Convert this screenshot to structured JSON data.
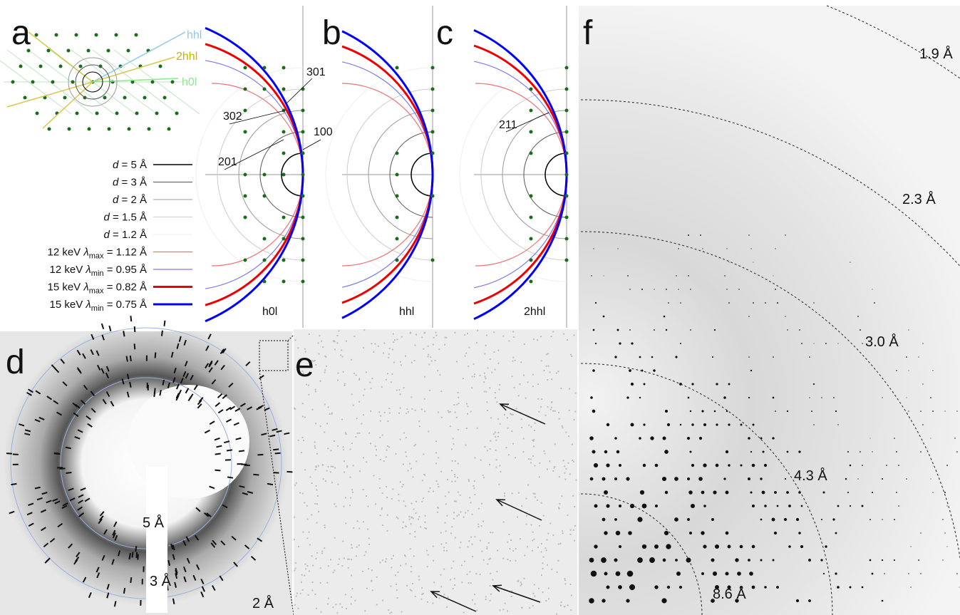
{
  "panel_labels": [
    "a",
    "b",
    "c",
    "d",
    "e",
    "f"
  ],
  "lattice_labels": [
    "hhl",
    "2hhl",
    "h0l"
  ],
  "reflections": [
    "301",
    "302",
    "201",
    "100",
    "211"
  ],
  "legend": [
    {
      "symbol": "d",
      "text": " = 5 Å"
    },
    {
      "symbol": "d",
      "text": " = 3 Å"
    },
    {
      "symbol": "d",
      "text": " = 2 Å"
    },
    {
      "symbol": "d",
      "text": " = 1.5 Å"
    },
    {
      "symbol": "d",
      "text": " = 1.2 Å"
    },
    {
      "prefix": "12 keV ",
      "symbol": "λ",
      "sub": "max",
      "text": " = 1.12 Å"
    },
    {
      "prefix": "12 keV ",
      "symbol": "λ",
      "sub": "min",
      "text": " = 0.95 Å"
    },
    {
      "prefix": "15 keV ",
      "symbol": "λ",
      "sub": "max",
      "text": " = 0.82 Å"
    },
    {
      "prefix": "15 keV ",
      "symbol": "λ",
      "sub": "min",
      "text": " = 0.75 Å"
    }
  ],
  "plane_labels": [
    "h0l",
    "hhl",
    "2hhl"
  ],
  "detector_rings": [
    "5 Å",
    "3 Å",
    "2 Å"
  ],
  "resolution_rings": [
    "1.9 Å",
    "2.3 Å",
    "3.0 Å",
    "4.3 Å",
    "8.6 Å"
  ]
}
